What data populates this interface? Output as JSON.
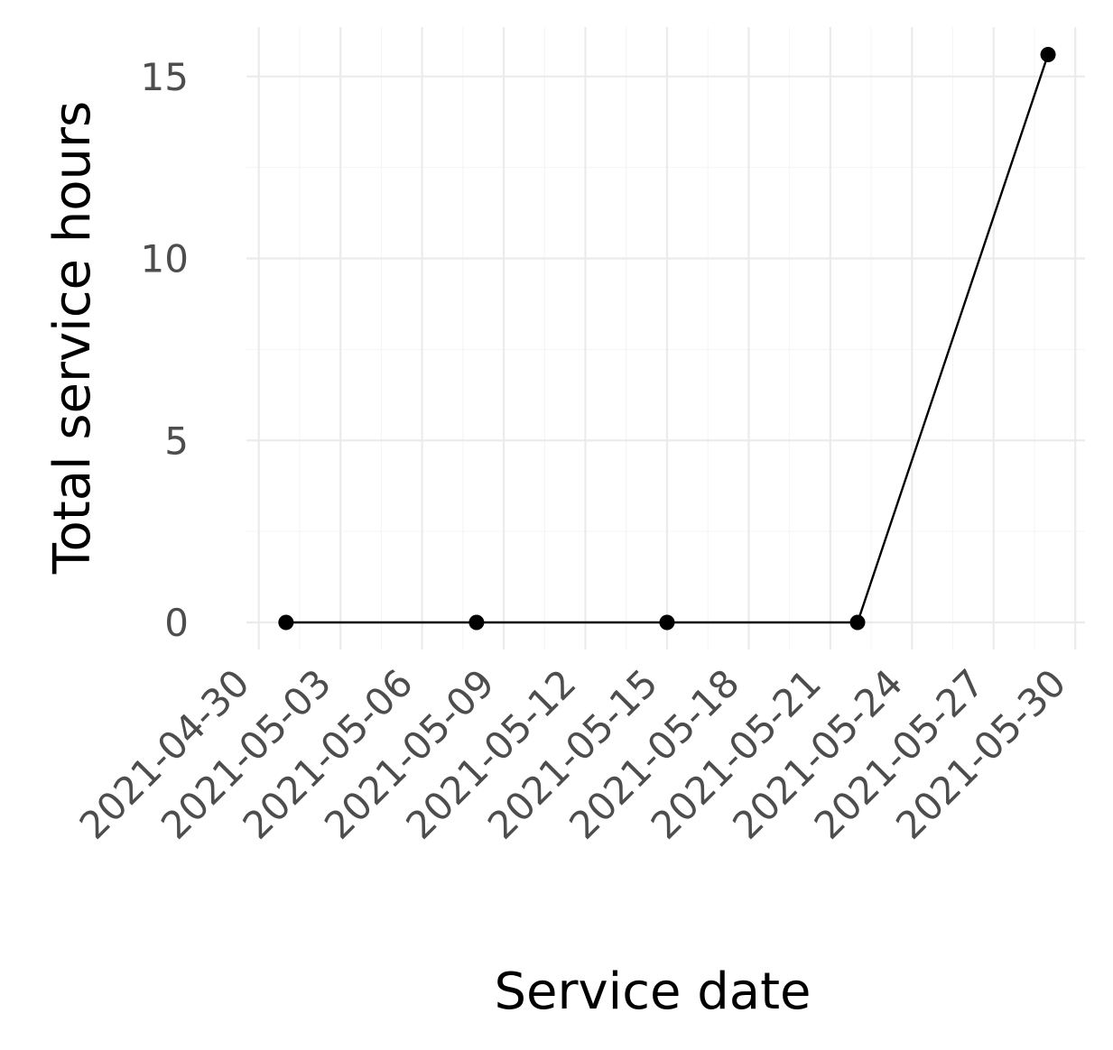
{
  "chart_data": {
    "type": "line",
    "title": "",
    "xlabel": "Service date",
    "ylabel": "Total service hours",
    "x_tick_labels": [
      "2021-04-30",
      "2021-05-03",
      "2021-05-06",
      "2021-05-09",
      "2021-05-12",
      "2021-05-15",
      "2021-05-18",
      "2021-05-21",
      "2021-05-24",
      "2021-05-27",
      "2021-05-30"
    ],
    "y_tick_labels": [
      "0",
      "5",
      "10",
      "15"
    ],
    "y_ticks": [
      0,
      5,
      10,
      15
    ],
    "x_range": [
      "2021-04-30",
      "2021-05-30"
    ],
    "ylim": [
      0,
      16
    ],
    "grid": true,
    "legend": "none",
    "series": [
      {
        "color": "#000000",
        "points": [
          {
            "x": "2021-05-01",
            "y": 0
          },
          {
            "x": "2021-05-08",
            "y": 0
          },
          {
            "x": "2021-05-15",
            "y": 0
          },
          {
            "x": "2021-05-22",
            "y": 0
          },
          {
            "x": "2021-05-29",
            "y": 15.6
          }
        ]
      }
    ]
  }
}
